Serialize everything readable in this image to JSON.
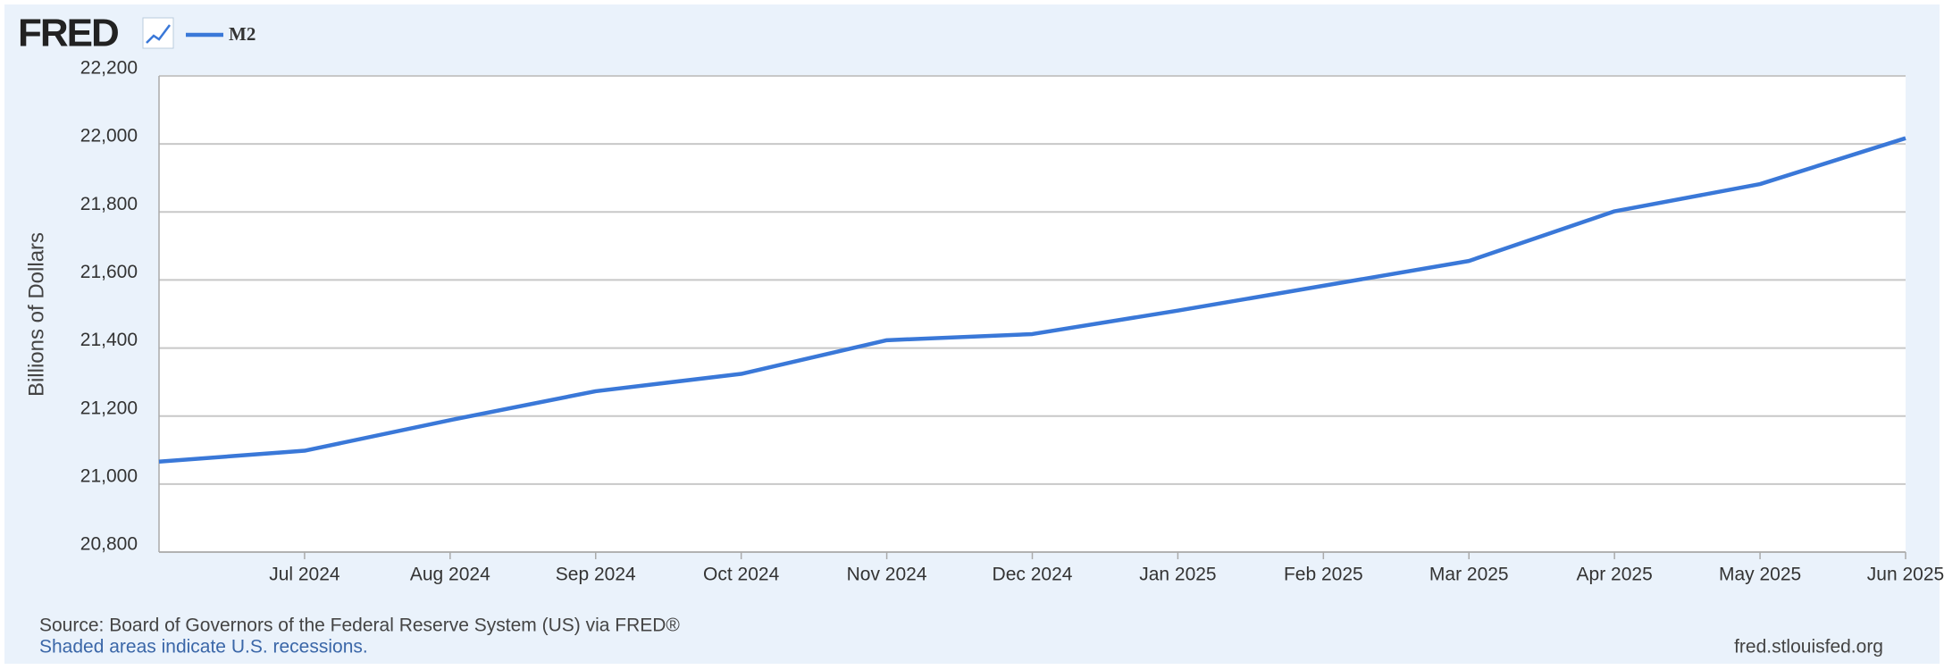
{
  "chart_data": {
    "type": "line",
    "logo": "FRED",
    "y_label": "Billions of Dollars",
    "source": "Source: Board of Governors of the Federal Reserve System (US) via FRED®",
    "note": "Shaded areas indicate U.S. recessions.",
    "site": "fred.stlouisfed.org",
    "categories": [
      null,
      "Jul 2024",
      "Aug 2024",
      "Sep 2024",
      "Oct 2024",
      "Nov 2024",
      "Dec 2024",
      "Jan 2025",
      "Feb 2025",
      "Mar 2025",
      "Apr 2025",
      "May 2025",
      "Jun 2025"
    ],
    "series": [
      {
        "name": "M2",
        "color": "#3a78d8",
        "values": [
          21066,
          21098,
          21188,
          21273,
          21324,
          21423,
          21441,
          21510,
          21583,
          21656,
          21802,
          21882,
          22017
        ]
      }
    ],
    "ylim": [
      20800,
      22200
    ],
    "yticks": [
      {
        "value": 20800,
        "label": "20,800"
      },
      {
        "value": 21000,
        "label": "21,000"
      },
      {
        "value": 21200,
        "label": "21,200"
      },
      {
        "value": 21400,
        "label": "21,400"
      },
      {
        "value": 21600,
        "label": "21,600"
      },
      {
        "value": 21800,
        "label": "21,800"
      },
      {
        "value": 22000,
        "label": "22,000"
      },
      {
        "value": 22200,
        "label": "22,200"
      }
    ],
    "grid": true
  }
}
